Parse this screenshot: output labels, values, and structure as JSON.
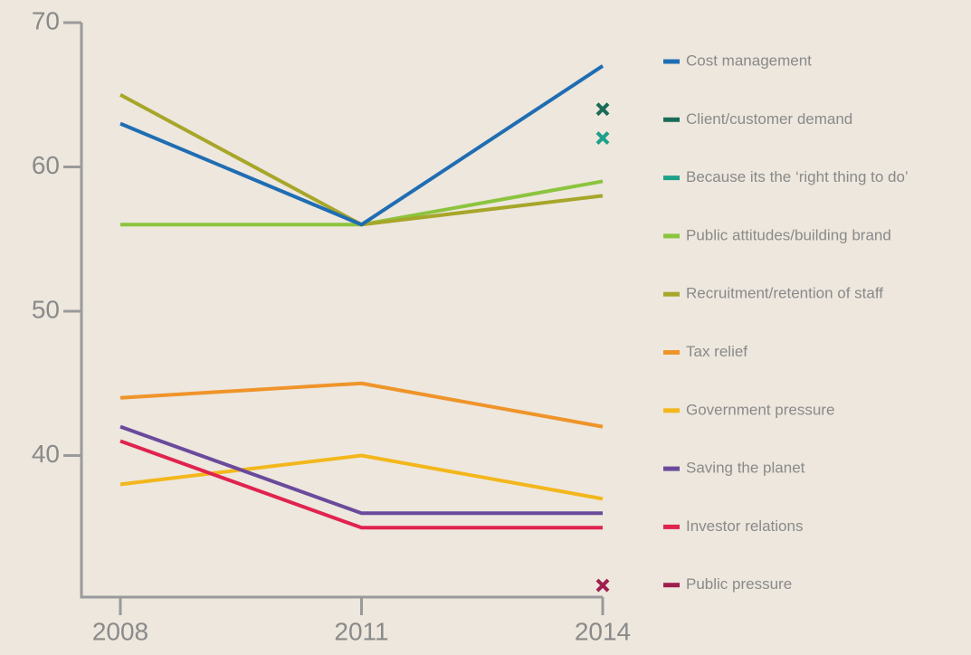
{
  "chart_data": {
    "type": "line",
    "categories": [
      "2008",
      "2011",
      "2014"
    ],
    "ylim": [
      30,
      70
    ],
    "yticks": [
      40,
      50,
      60,
      70
    ],
    "legend": "right",
    "series": [
      {
        "name": "Cost management",
        "color": "#1f6db3",
        "values": [
          63,
          56,
          67
        ]
      },
      {
        "name": "Client/customer demand",
        "color": "#1b6b58",
        "values": [
          null,
          null,
          64
        ]
      },
      {
        "name": "Because its the ‘right thing to do’",
        "color": "#1fa089",
        "values": [
          null,
          null,
          62
        ]
      },
      {
        "name": "Public attitudes/building brand",
        "color": "#8cc43e",
        "values": [
          56,
          56,
          59
        ]
      },
      {
        "name": "Recruitment/retention of staff",
        "color": "#a7a62a",
        "values": [
          65,
          56,
          58
        ]
      },
      {
        "name": "Tax relief",
        "color": "#ef942a",
        "values": [
          44,
          45,
          42
        ]
      },
      {
        "name": "Government pressure",
        "color": "#f3b71c",
        "values": [
          38,
          40,
          37
        ]
      },
      {
        "name": "Saving the planet",
        "color": "#6a4a9c",
        "values": [
          42,
          36,
          36
        ]
      },
      {
        "name": "Investor relations",
        "color": "#e0234f",
        "values": [
          41,
          35,
          35
        ]
      },
      {
        "name": "Public pressure",
        "color": "#9e1f4e",
        "values": [
          null,
          null,
          31
        ]
      }
    ]
  }
}
